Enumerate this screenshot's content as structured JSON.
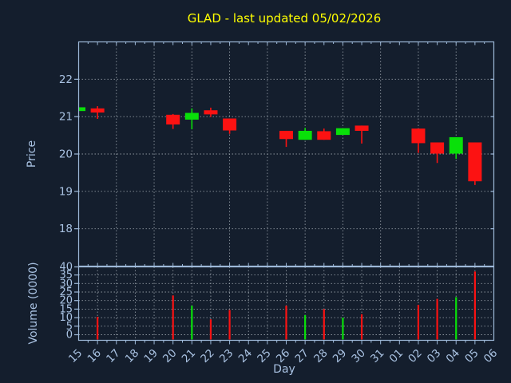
{
  "title": {
    "text": "GLAD - last updated 05/02/2026",
    "color": "#ffff00"
  },
  "colors": {
    "background": "#141e2d",
    "axis": "#9db8d8",
    "tick_label": "#a9c2e2",
    "grid": "#a9b2ba",
    "up": "#09e009",
    "down": "#fc1212"
  },
  "chart_data": [
    {
      "type": "candlestick",
      "title": "GLAD - last updated 05/02/2026",
      "xlabel": "Day",
      "ylabel": "Price",
      "ylim": [
        17,
        23
      ],
      "yticks": [
        18,
        19,
        20,
        21,
        22
      ],
      "grid": true,
      "x_categories": [
        "15",
        "16",
        "17",
        "18",
        "19",
        "20",
        "21",
        "22",
        "23",
        "24",
        "25",
        "26",
        "27",
        "28",
        "29",
        "30",
        "31",
        "01",
        "02",
        "03",
        "04",
        "05",
        "06"
      ],
      "vertical_gridline_days": [
        "17",
        "19",
        "21",
        "23",
        "25",
        "27",
        "29",
        "31",
        "02",
        "04"
      ],
      "candles": [
        {
          "day": "15",
          "open": 21.15,
          "high": 21.25,
          "low": 21.15,
          "close": 21.25,
          "direction": "up"
        },
        {
          "day": "16",
          "open": 21.22,
          "high": 21.28,
          "low": 20.94,
          "close": 21.11,
          "direction": "down"
        },
        {
          "day": "20",
          "open": 21.05,
          "high": 21.07,
          "low": 20.67,
          "close": 20.79,
          "direction": "down"
        },
        {
          "day": "21",
          "open": 20.92,
          "high": 21.22,
          "low": 20.66,
          "close": 21.1,
          "direction": "up"
        },
        {
          "day": "22",
          "open": 21.17,
          "high": 21.24,
          "low": 20.99,
          "close": 21.06,
          "direction": "down"
        },
        {
          "day": "23",
          "open": 20.95,
          "high": 20.95,
          "low": 20.54,
          "close": 20.63,
          "direction": "down"
        },
        {
          "day": "26",
          "open": 20.62,
          "high": 20.62,
          "low": 20.19,
          "close": 20.4,
          "direction": "down"
        },
        {
          "day": "27",
          "open": 20.38,
          "high": 20.7,
          "low": 20.38,
          "close": 20.62,
          "direction": "up"
        },
        {
          "day": "28",
          "open": 20.61,
          "high": 20.68,
          "low": 20.38,
          "close": 20.38,
          "direction": "down"
        },
        {
          "day": "29",
          "open": 20.51,
          "high": 20.69,
          "low": 20.51,
          "close": 20.69,
          "direction": "up"
        },
        {
          "day": "30",
          "open": 20.76,
          "high": 20.76,
          "low": 20.28,
          "close": 20.62,
          "direction": "down"
        },
        {
          "day": "02",
          "open": 20.68,
          "high": 20.68,
          "low": 20.03,
          "close": 20.29,
          "direction": "down"
        },
        {
          "day": "03",
          "open": 20.31,
          "high": 20.31,
          "low": 19.76,
          "close": 20.01,
          "direction": "down"
        },
        {
          "day": "04",
          "open": 20.01,
          "high": 20.45,
          "low": 19.87,
          "close": 20.45,
          "direction": "up"
        },
        {
          "day": "05",
          "open": 20.31,
          "high": 20.31,
          "low": 19.17,
          "close": 19.27,
          "direction": "down"
        }
      ]
    },
    {
      "type": "bar",
      "ylabel": "Volume (0000)",
      "ylim": [
        0,
        40
      ],
      "yticks": [
        0,
        5,
        10,
        15,
        20,
        25,
        30,
        35,
        40
      ],
      "grid": true,
      "x_categories": [
        "15",
        "16",
        "17",
        "18",
        "19",
        "20",
        "21",
        "22",
        "23",
        "24",
        "25",
        "26",
        "27",
        "28",
        "29",
        "30",
        "31",
        "01",
        "02",
        "03",
        "04",
        "05",
        "06"
      ],
      "bars": [
        {
          "day": "16",
          "value": 10.5,
          "direction": "down"
        },
        {
          "day": "20",
          "value": 23,
          "direction": "down"
        },
        {
          "day": "21",
          "value": 17,
          "direction": "up"
        },
        {
          "day": "22",
          "value": 9,
          "direction": "down"
        },
        {
          "day": "23",
          "value": 14.5,
          "direction": "down"
        },
        {
          "day": "26",
          "value": 17,
          "direction": "down"
        },
        {
          "day": "27",
          "value": 11.5,
          "direction": "up"
        },
        {
          "day": "28",
          "value": 15,
          "direction": "down"
        },
        {
          "day": "29",
          "value": 10,
          "direction": "up"
        },
        {
          "day": "30",
          "value": 12,
          "direction": "down"
        },
        {
          "day": "02",
          "value": 17.5,
          "direction": "down"
        },
        {
          "day": "03",
          "value": 21,
          "direction": "down"
        },
        {
          "day": "04",
          "value": 22,
          "direction": "up"
        },
        {
          "day": "05",
          "value": 37,
          "direction": "down"
        }
      ]
    }
  ]
}
